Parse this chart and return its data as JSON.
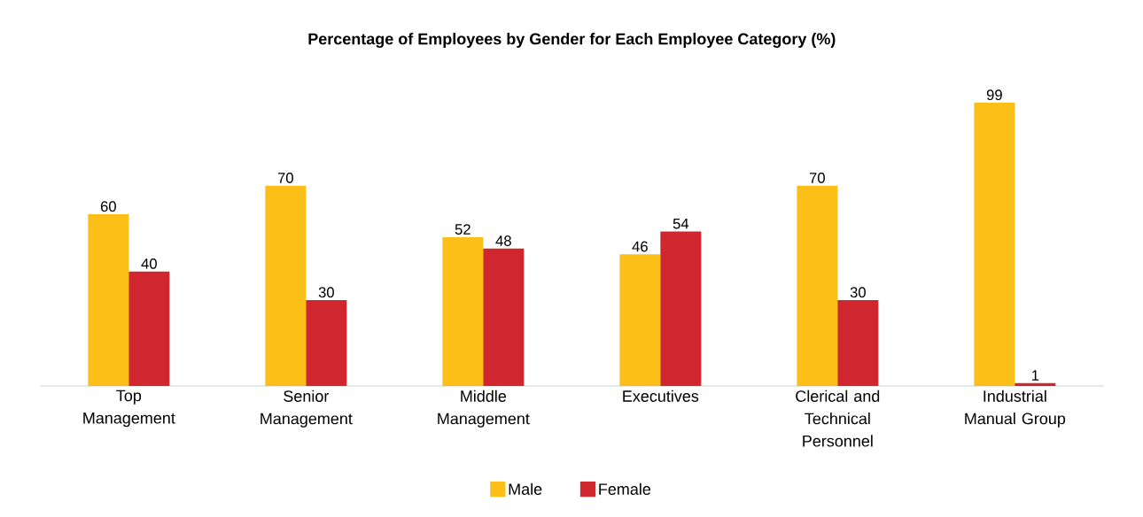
{
  "chart_data": {
    "type": "bar",
    "title": "Percentage of Employees by Gender for Each Employee Category (%)",
    "categories": [
      "Top Management",
      "Senior Management",
      "Middle Management",
      "Executives",
      "Clerical and Technical Personnel",
      "Industrial Manual Group"
    ],
    "series": [
      {
        "name": "Male",
        "color": "#fbbf17",
        "values": [
          60,
          70,
          52,
          46,
          70,
          99
        ]
      },
      {
        "name": "Female",
        "color": "#d0262e",
        "values": [
          40,
          30,
          48,
          54,
          30,
          1
        ]
      }
    ],
    "data_labels": true,
    "legend": "bottom"
  }
}
